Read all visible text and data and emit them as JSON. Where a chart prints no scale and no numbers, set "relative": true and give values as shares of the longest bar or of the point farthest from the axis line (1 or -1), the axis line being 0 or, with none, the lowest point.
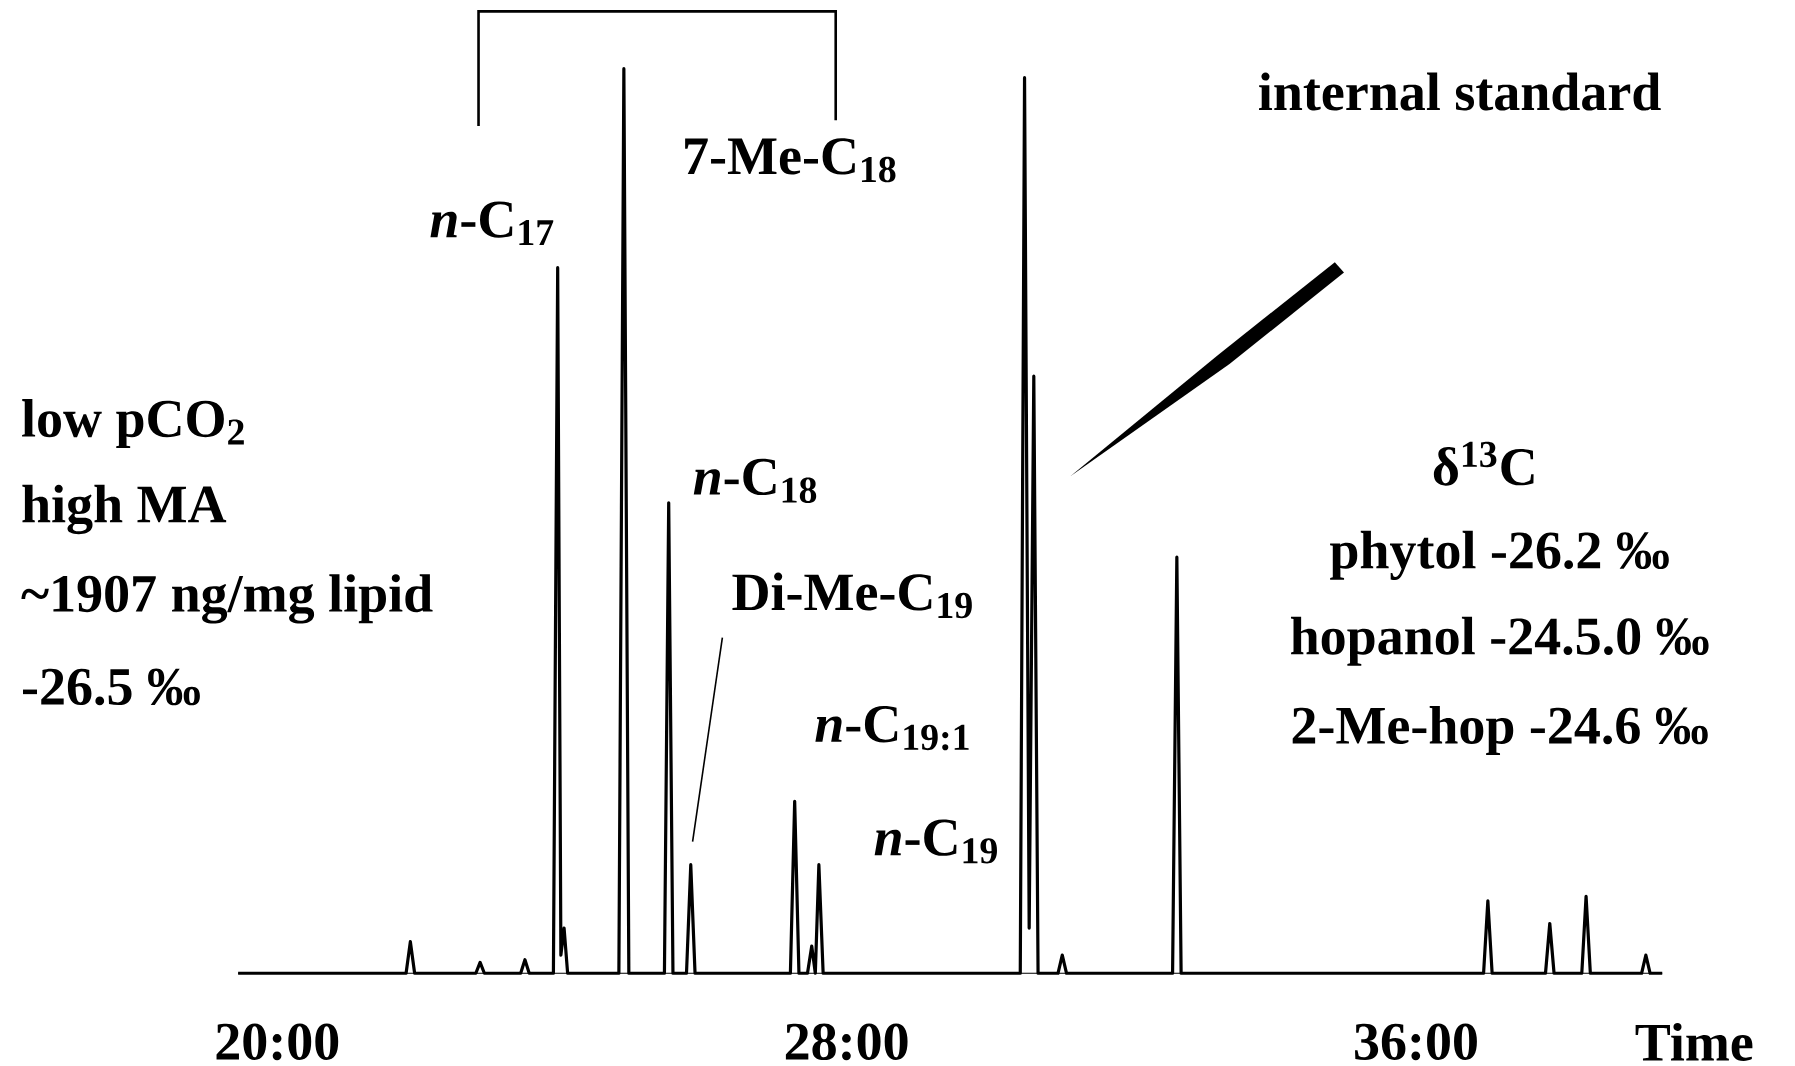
{
  "chart_data": {
    "type": "line",
    "relative": true,
    "xlabel": "Time",
    "xlim": [
      19.45,
      39.46
    ],
    "xticks": [
      {
        "value": 20,
        "label": "20:00"
      },
      {
        "value": 28,
        "label": "28:00"
      },
      {
        "value": 36,
        "label": "36:00"
      }
    ],
    "series": [
      {
        "color": "#000000",
        "x": [
          19.45,
          21.81,
          21.87,
          21.93,
          22.79,
          22.85,
          22.91,
          23.42,
          23.48,
          23.54,
          23.88,
          23.94,
          23.985,
          24.03,
          24.08,
          24.8,
          24.87,
          24.94,
          25.44,
          25.5,
          25.56,
          25.75,
          25.81,
          25.87,
          27.21,
          27.27,
          27.33,
          27.45,
          27.51,
          27.56,
          27.61,
          27.67,
          30.44,
          30.5,
          30.565,
          30.63,
          30.69,
          30.97,
          31.03,
          31.09,
          32.58,
          32.64,
          32.7,
          36.95,
          37.01,
          37.07,
          37.82,
          37.88,
          37.94,
          38.33,
          38.39,
          38.45,
          39.17,
          39.23,
          39.29,
          39.46
        ],
        "values": [
          0,
          0,
          0.035,
          0,
          0,
          0.012,
          0,
          0,
          0.015,
          0,
          0,
          0.78,
          0.02,
          0.05,
          0,
          0,
          1,
          0,
          0,
          0.52,
          0,
          0,
          0.12,
          0,
          0,
          0.19,
          0,
          0,
          0.03,
          0,
          0.12,
          0,
          0,
          0.99,
          0.05,
          0.66,
          0,
          0,
          0.02,
          0,
          0,
          0.46,
          0,
          0,
          0.08,
          0,
          0,
          0.055,
          0,
          0,
          0.085,
          0,
          0,
          0.02,
          0,
          0
        ]
      }
    ],
    "annotations": [
      "internal standard",
      "7-Me-C$_{18}$",
      "*n*-C$_{17}$",
      "low pCO$_{2}$",
      "high MA",
      "~1907 ng/mg lipid",
      "-26.5 ‰",
      "*n*-C$_{18}$",
      "Di-Me-C$_{19}$",
      "*n*-C$_{19:1}$",
      "*n*-C$_{19}$",
      "δ$^{13}$C",
      "phytol -26.2 ‰",
      "hopanol -24.5.0 ‰",
      "2-Me-hop -24.6 ‰"
    ]
  }
}
